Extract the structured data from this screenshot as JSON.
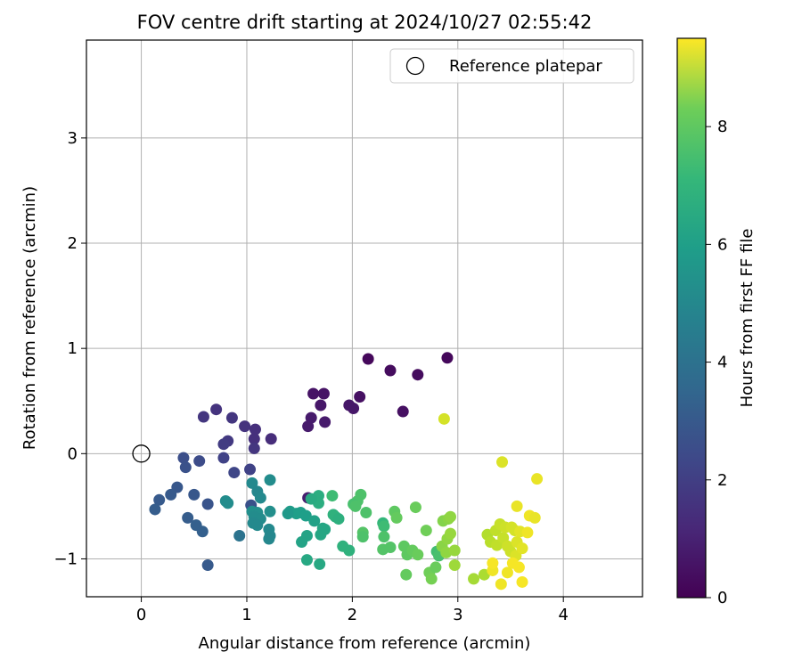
{
  "chart_data": {
    "type": "scatter",
    "title": "FOV centre drift starting at 2024/10/27 02:55:42",
    "xlabel": "Angular distance from reference (arcmin)",
    "ylabel": "Rotation from reference (arcmin)",
    "xlim": [
      -0.52,
      4.75
    ],
    "ylim": [
      -1.36,
      3.93
    ],
    "xticks": [
      0,
      1,
      2,
      3,
      4
    ],
    "yticks": [
      -1,
      0,
      1,
      2,
      3
    ],
    "grid": true,
    "legend": {
      "placement": "top-right",
      "entries": [
        "Reference platepar"
      ]
    },
    "reference_point": {
      "x": 0,
      "y": 0
    },
    "colorbar": {
      "label": "Hours from first FF file",
      "colormap": "viridis",
      "range": [
        0,
        9.5
      ],
      "ticks": [
        0,
        2,
        4,
        6,
        8
      ]
    },
    "series": [
      {
        "points": [
          {
            "x": 2.15,
            "y": 0.9,
            "c": 0.2
          },
          {
            "x": 2.9,
            "y": 0.91,
            "c": 0.2
          },
          {
            "x": 2.36,
            "y": 0.79,
            "c": 0.3
          },
          {
            "x": 2.62,
            "y": 0.75,
            "c": 0.3
          },
          {
            "x": 1.63,
            "y": 0.57,
            "c": 0.5
          },
          {
            "x": 1.73,
            "y": 0.57,
            "c": 0.5
          },
          {
            "x": 2.07,
            "y": 0.54,
            "c": 0.4
          },
          {
            "x": 1.7,
            "y": 0.46,
            "c": 0.6
          },
          {
            "x": 1.97,
            "y": 0.46,
            "c": 0.6
          },
          {
            "x": 2.01,
            "y": 0.43,
            "c": 0.6
          },
          {
            "x": 2.48,
            "y": 0.4,
            "c": 0.4
          },
          {
            "x": 1.61,
            "y": 0.34,
            "c": 0.7
          },
          {
            "x": 1.74,
            "y": 0.3,
            "c": 0.7
          },
          {
            "x": 1.58,
            "y": 0.26,
            "c": 0.7
          },
          {
            "x": 1.58,
            "y": -0.42,
            "c": 0.8
          },
          {
            "x": 0.71,
            "y": 0.42,
            "c": 1.4
          },
          {
            "x": 0.59,
            "y": 0.35,
            "c": 1.5
          },
          {
            "x": 0.86,
            "y": 0.34,
            "c": 1.5
          },
          {
            "x": 0.98,
            "y": 0.26,
            "c": 1.4
          },
          {
            "x": 1.08,
            "y": 0.23,
            "c": 1.3
          },
          {
            "x": 1.07,
            "y": 0.14,
            "c": 1.3
          },
          {
            "x": 1.23,
            "y": 0.14,
            "c": 1.2
          },
          {
            "x": 0.82,
            "y": 0.12,
            "c": 1.6
          },
          {
            "x": 0.78,
            "y": 0.09,
            "c": 1.7
          },
          {
            "x": 1.07,
            "y": 0.05,
            "c": 1.5
          },
          {
            "x": 0.78,
            "y": -0.04,
            "c": 1.9
          },
          {
            "x": 0.4,
            "y": -0.04,
            "c": 2.3
          },
          {
            "x": 0.55,
            "y": -0.07,
            "c": 2.2
          },
          {
            "x": 0.42,
            "y": -0.13,
            "c": 2.4
          },
          {
            "x": 1.03,
            "y": -0.15,
            "c": 1.9
          },
          {
            "x": 0.88,
            "y": -0.18,
            "c": 2.0
          },
          {
            "x": 0.34,
            "y": -0.32,
            "c": 2.6
          },
          {
            "x": 0.28,
            "y": -0.39,
            "c": 2.7
          },
          {
            "x": 0.5,
            "y": -0.39,
            "c": 2.6
          },
          {
            "x": 0.17,
            "y": -0.44,
            "c": 2.7
          },
          {
            "x": 0.63,
            "y": -0.48,
            "c": 2.5
          },
          {
            "x": 1.04,
            "y": -0.49,
            "c": 2.4
          },
          {
            "x": 0.13,
            "y": -0.53,
            "c": 2.8
          },
          {
            "x": 0.44,
            "y": -0.61,
            "c": 2.8
          },
          {
            "x": 0.52,
            "y": -0.68,
            "c": 2.9
          },
          {
            "x": 0.58,
            "y": -0.74,
            "c": 2.9
          },
          {
            "x": 0.93,
            "y": -0.78,
            "c": 3.6
          },
          {
            "x": 0.63,
            "y": -1.06,
            "c": 2.7
          },
          {
            "x": 1.22,
            "y": -0.25,
            "c": 4.6
          },
          {
            "x": 1.05,
            "y": -0.28,
            "c": 4.5
          },
          {
            "x": 1.1,
            "y": -0.36,
            "c": 4.4
          },
          {
            "x": 1.13,
            "y": -0.42,
            "c": 4.5
          },
          {
            "x": 0.8,
            "y": -0.45,
            "c": 4.6
          },
          {
            "x": 0.82,
            "y": -0.47,
            "c": 4.6
          },
          {
            "x": 1.05,
            "y": -0.55,
            "c": 4.7
          },
          {
            "x": 1.1,
            "y": -0.56,
            "c": 4.7
          },
          {
            "x": 1.22,
            "y": -0.55,
            "c": 4.7
          },
          {
            "x": 1.07,
            "y": -0.6,
            "c": 4.6
          },
          {
            "x": 1.13,
            "y": -0.62,
            "c": 4.6
          },
          {
            "x": 1.06,
            "y": -0.66,
            "c": 4.5
          },
          {
            "x": 1.1,
            "y": -0.68,
            "c": 4.5
          },
          {
            "x": 1.21,
            "y": -0.72,
            "c": 4.5
          },
          {
            "x": 1.22,
            "y": -0.78,
            "c": 4.4
          },
          {
            "x": 1.21,
            "y": -0.81,
            "c": 4.4
          },
          {
            "x": 1.41,
            "y": -0.55,
            "c": 5.2
          },
          {
            "x": 1.47,
            "y": -0.57,
            "c": 5.3
          },
          {
            "x": 1.51,
            "y": -0.56,
            "c": 5.3
          },
          {
            "x": 1.56,
            "y": -0.59,
            "c": 5.3
          },
          {
            "x": 1.39,
            "y": -0.57,
            "c": 5.1
          },
          {
            "x": 1.64,
            "y": -0.64,
            "c": 5.4
          },
          {
            "x": 1.68,
            "y": -0.4,
            "c": 5.9
          },
          {
            "x": 1.68,
            "y": -0.47,
            "c": 5.9
          },
          {
            "x": 1.61,
            "y": -0.43,
            "c": 5.8
          },
          {
            "x": 1.72,
            "y": -0.71,
            "c": 5.6
          },
          {
            "x": 1.7,
            "y": -0.77,
            "c": 5.6
          },
          {
            "x": 1.74,
            "y": -0.72,
            "c": 5.6
          },
          {
            "x": 1.57,
            "y": -0.78,
            "c": 5.5
          },
          {
            "x": 1.52,
            "y": -0.84,
            "c": 5.5
          },
          {
            "x": 1.57,
            "y": -1.01,
            "c": 5.7
          },
          {
            "x": 1.69,
            "y": -1.05,
            "c": 5.7
          },
          {
            "x": 1.82,
            "y": -0.58,
            "c": 6.1
          },
          {
            "x": 1.84,
            "y": -0.6,
            "c": 6.1
          },
          {
            "x": 1.87,
            "y": -0.62,
            "c": 6.0
          },
          {
            "x": 1.81,
            "y": -0.4,
            "c": 6.5
          },
          {
            "x": 1.91,
            "y": -0.88,
            "c": 6.1
          },
          {
            "x": 1.97,
            "y": -0.92,
            "c": 6.1
          },
          {
            "x": 2.08,
            "y": -0.39,
            "c": 6.8
          },
          {
            "x": 2.05,
            "y": -0.45,
            "c": 6.8
          },
          {
            "x": 2.01,
            "y": -0.48,
            "c": 6.7
          },
          {
            "x": 2.03,
            "y": -0.5,
            "c": 6.8
          },
          {
            "x": 2.13,
            "y": -0.56,
            "c": 6.8
          },
          {
            "x": 2.1,
            "y": -0.75,
            "c": 6.9
          },
          {
            "x": 2.1,
            "y": -0.79,
            "c": 6.8
          },
          {
            "x": 2.29,
            "y": -0.66,
            "c": 6.3
          },
          {
            "x": 2.3,
            "y": -0.69,
            "c": 6.5
          },
          {
            "x": 2.3,
            "y": -0.79,
            "c": 6.8
          },
          {
            "x": 2.29,
            "y": -0.91,
            "c": 6.9
          },
          {
            "x": 2.36,
            "y": -0.89,
            "c": 6.9
          },
          {
            "x": 2.4,
            "y": -0.55,
            "c": 7.1
          },
          {
            "x": 2.42,
            "y": -0.61,
            "c": 7.2
          },
          {
            "x": 2.6,
            "y": -0.51,
            "c": 7.3
          },
          {
            "x": 2.49,
            "y": -0.88,
            "c": 7.1
          },
          {
            "x": 2.52,
            "y": -0.96,
            "c": 7.1
          },
          {
            "x": 2.57,
            "y": -0.92,
            "c": 7.2
          },
          {
            "x": 2.62,
            "y": -0.96,
            "c": 7.3
          },
          {
            "x": 2.51,
            "y": -1.15,
            "c": 7.2
          },
          {
            "x": 2.7,
            "y": -0.73,
            "c": 7.4
          },
          {
            "x": 2.73,
            "y": -1.13,
            "c": 7.4
          },
          {
            "x": 2.75,
            "y": -1.19,
            "c": 7.5
          },
          {
            "x": 2.79,
            "y": -1.08,
            "c": 7.3
          },
          {
            "x": 2.8,
            "y": -0.93,
            "c": 6.6
          },
          {
            "x": 2.82,
            "y": -0.97,
            "c": 6.7
          },
          {
            "x": 2.86,
            "y": -0.64,
            "c": 7.7
          },
          {
            "x": 2.91,
            "y": -0.62,
            "c": 7.8
          },
          {
            "x": 2.93,
            "y": -0.6,
            "c": 7.9
          },
          {
            "x": 2.85,
            "y": -0.88,
            "c": 7.8
          },
          {
            "x": 2.9,
            "y": -0.81,
            "c": 7.9
          },
          {
            "x": 2.93,
            "y": -0.76,
            "c": 8.0
          },
          {
            "x": 2.89,
            "y": -0.94,
            "c": 7.9
          },
          {
            "x": 2.97,
            "y": -0.92,
            "c": 8.0
          },
          {
            "x": 2.97,
            "y": -1.06,
            "c": 8.1
          },
          {
            "x": 2.87,
            "y": 0.33,
            "c": 8.9
          },
          {
            "x": 3.15,
            "y": -1.19,
            "c": 8.2
          },
          {
            "x": 3.25,
            "y": -1.15,
            "c": 8.3
          },
          {
            "x": 3.28,
            "y": -0.77,
            "c": 8.4
          },
          {
            "x": 3.31,
            "y": -0.84,
            "c": 8.5
          },
          {
            "x": 3.37,
            "y": -0.87,
            "c": 8.6
          },
          {
            "x": 3.36,
            "y": -0.73,
            "c": 8.6
          },
          {
            "x": 3.4,
            "y": -0.67,
            "c": 8.7
          },
          {
            "x": 3.43,
            "y": -0.8,
            "c": 8.7
          },
          {
            "x": 3.45,
            "y": -0.7,
            "c": 8.8
          },
          {
            "x": 3.42,
            "y": -0.08,
            "c": 9.0
          },
          {
            "x": 3.51,
            "y": -0.7,
            "c": 8.9
          },
          {
            "x": 3.54,
            "y": -0.73,
            "c": 8.9
          },
          {
            "x": 3.47,
            "y": -0.88,
            "c": 8.8
          },
          {
            "x": 3.5,
            "y": -0.93,
            "c": 8.8
          },
          {
            "x": 3.55,
            "y": -0.97,
            "c": 9.0
          },
          {
            "x": 3.56,
            "y": -0.84,
            "c": 9.0
          },
          {
            "x": 3.59,
            "y": -0.74,
            "c": 9.1
          },
          {
            "x": 3.61,
            "y": -0.9,
            "c": 9.1
          },
          {
            "x": 3.56,
            "y": -0.5,
            "c": 9.2
          },
          {
            "x": 3.66,
            "y": -0.75,
            "c": 9.3
          },
          {
            "x": 3.68,
            "y": -0.59,
            "c": 9.3
          },
          {
            "x": 3.73,
            "y": -0.61,
            "c": 9.2
          },
          {
            "x": 3.75,
            "y": -0.24,
            "c": 9.2
          },
          {
            "x": 3.33,
            "y": -1.11,
            "c": 9.3
          },
          {
            "x": 3.33,
            "y": -1.04,
            "c": 9.4
          },
          {
            "x": 3.41,
            "y": -1.24,
            "c": 9.3
          },
          {
            "x": 3.52,
            "y": -1.04,
            "c": 9.4
          },
          {
            "x": 3.58,
            "y": -1.08,
            "c": 9.4
          },
          {
            "x": 3.61,
            "y": -1.22,
            "c": 9.4
          },
          {
            "x": 3.47,
            "y": -1.13,
            "c": 9.3
          }
        ]
      }
    ]
  }
}
